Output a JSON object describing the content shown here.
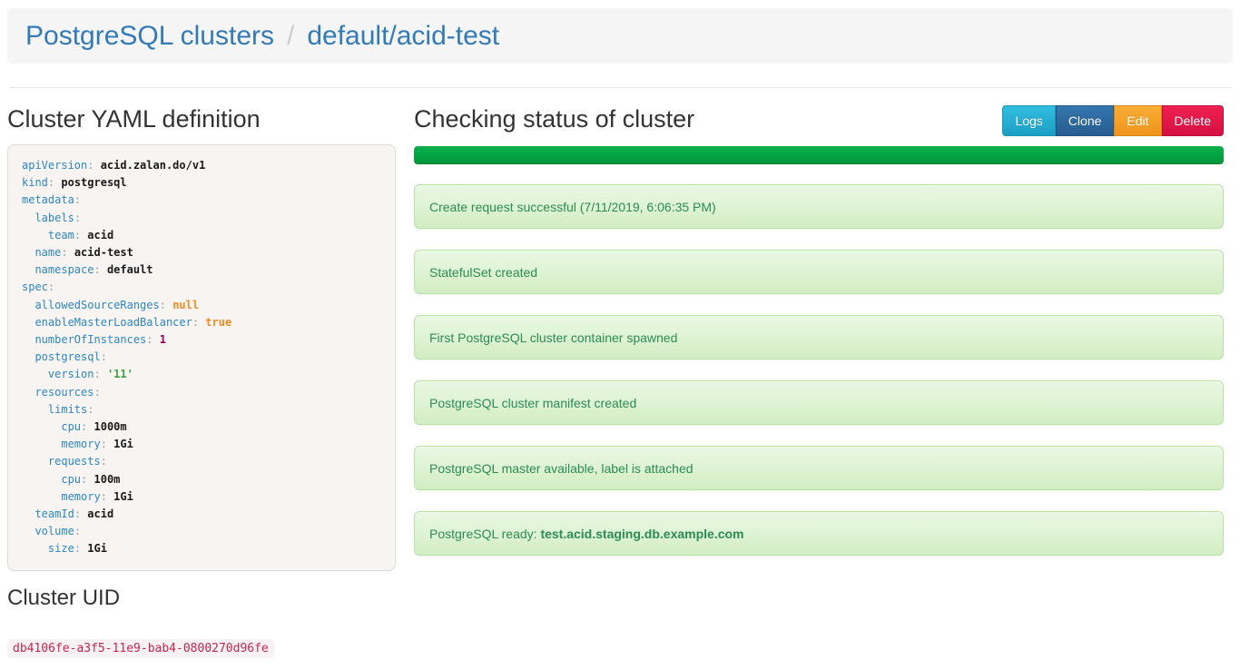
{
  "colors": {
    "link-blue": "#337ab7",
    "key-blue": "#2e86c1",
    "token-orange": "#f08c24",
    "token-magenta": "#990055",
    "token-green": "#3f9e43",
    "progress-green-light": "#0ab04c",
    "progress-green-dark": "#009639",
    "alert-bg-top": "#eaf8e4",
    "alert-bg-bottom": "#d2edc4",
    "alert-border": "#bae2a8",
    "alert-text": "#2c8c51"
  },
  "header": {
    "breadcrumb_root": "PostgreSQL clusters",
    "separator": "/",
    "breadcrumb_current": "default/acid-test"
  },
  "yaml_panel": {
    "title": "Cluster YAML definition",
    "lines": [
      {
        "indent": 0,
        "key": "apiVersion",
        "value": "acid.zalan.do/v1",
        "vtype": "plain"
      },
      {
        "indent": 0,
        "key": "kind",
        "value": "postgresql",
        "vtype": "plain"
      },
      {
        "indent": 0,
        "key": "metadata",
        "value": "",
        "vtype": "none"
      },
      {
        "indent": 1,
        "key": "labels",
        "value": "",
        "vtype": "none"
      },
      {
        "indent": 2,
        "key": "team",
        "value": "acid",
        "vtype": "plain"
      },
      {
        "indent": 1,
        "key": "name",
        "value": "acid-test",
        "vtype": "plain"
      },
      {
        "indent": 1,
        "key": "namespace",
        "value": "default",
        "vtype": "plain"
      },
      {
        "indent": 0,
        "key": "spec",
        "value": "",
        "vtype": "none"
      },
      {
        "indent": 1,
        "key": "allowedSourceRanges",
        "value": "null",
        "vtype": "null"
      },
      {
        "indent": 1,
        "key": "enableMasterLoadBalancer",
        "value": "true",
        "vtype": "bool"
      },
      {
        "indent": 1,
        "key": "numberOfInstances",
        "value": "1",
        "vtype": "num"
      },
      {
        "indent": 1,
        "key": "postgresql",
        "value": "",
        "vtype": "none"
      },
      {
        "indent": 2,
        "key": "version",
        "value": "'11'",
        "vtype": "str"
      },
      {
        "indent": 1,
        "key": "resources",
        "value": "",
        "vtype": "none"
      },
      {
        "indent": 2,
        "key": "limits",
        "value": "",
        "vtype": "none"
      },
      {
        "indent": 3,
        "key": "cpu",
        "value": "1000m",
        "vtype": "plain"
      },
      {
        "indent": 3,
        "key": "memory",
        "value": "1Gi",
        "vtype": "plain"
      },
      {
        "indent": 2,
        "key": "requests",
        "value": "",
        "vtype": "none"
      },
      {
        "indent": 3,
        "key": "cpu",
        "value": "100m",
        "vtype": "plain"
      },
      {
        "indent": 3,
        "key": "memory",
        "value": "1Gi",
        "vtype": "plain"
      },
      {
        "indent": 1,
        "key": "teamId",
        "value": "acid",
        "vtype": "plain"
      },
      {
        "indent": 1,
        "key": "volume",
        "value": "",
        "vtype": "none"
      },
      {
        "indent": 2,
        "key": "size",
        "value": "1Gi",
        "vtype": "plain"
      }
    ]
  },
  "uid_panel": {
    "title": "Cluster UID",
    "uid": "db4106fe-a3f5-11e9-bab4-0800270d96fe"
  },
  "status_panel": {
    "title": "Checking status of cluster",
    "progress_percent": 100,
    "buttons": [
      {
        "label": "Logs",
        "bg_top": "#31bde1",
        "bg_bottom": "#1b9fc4",
        "border": "#1b93b5"
      },
      {
        "label": "Clone",
        "bg_top": "#3476b0",
        "bg_bottom": "#275d8e",
        "border": "#23547e"
      },
      {
        "label": "Edit",
        "bg_top": "#f9ad36",
        "bg_bottom": "#f0941c",
        "border": "#db8715"
      },
      {
        "label": "Delete",
        "bg_top": "#ee2150",
        "bg_bottom": "#d60f42",
        "border": "#bd0c3a"
      }
    ],
    "messages": [
      {
        "text": "Create request successful (7/11/2019, 6:06:35 PM)"
      },
      {
        "text": "StatefulSet created"
      },
      {
        "text": "First PostgreSQL cluster container spawned"
      },
      {
        "text": "PostgreSQL cluster manifest created"
      },
      {
        "text": "PostgreSQL master available, label is attached"
      },
      {
        "text": "PostgreSQL ready: ",
        "bold": "test.acid.staging.db.example.com"
      }
    ]
  }
}
